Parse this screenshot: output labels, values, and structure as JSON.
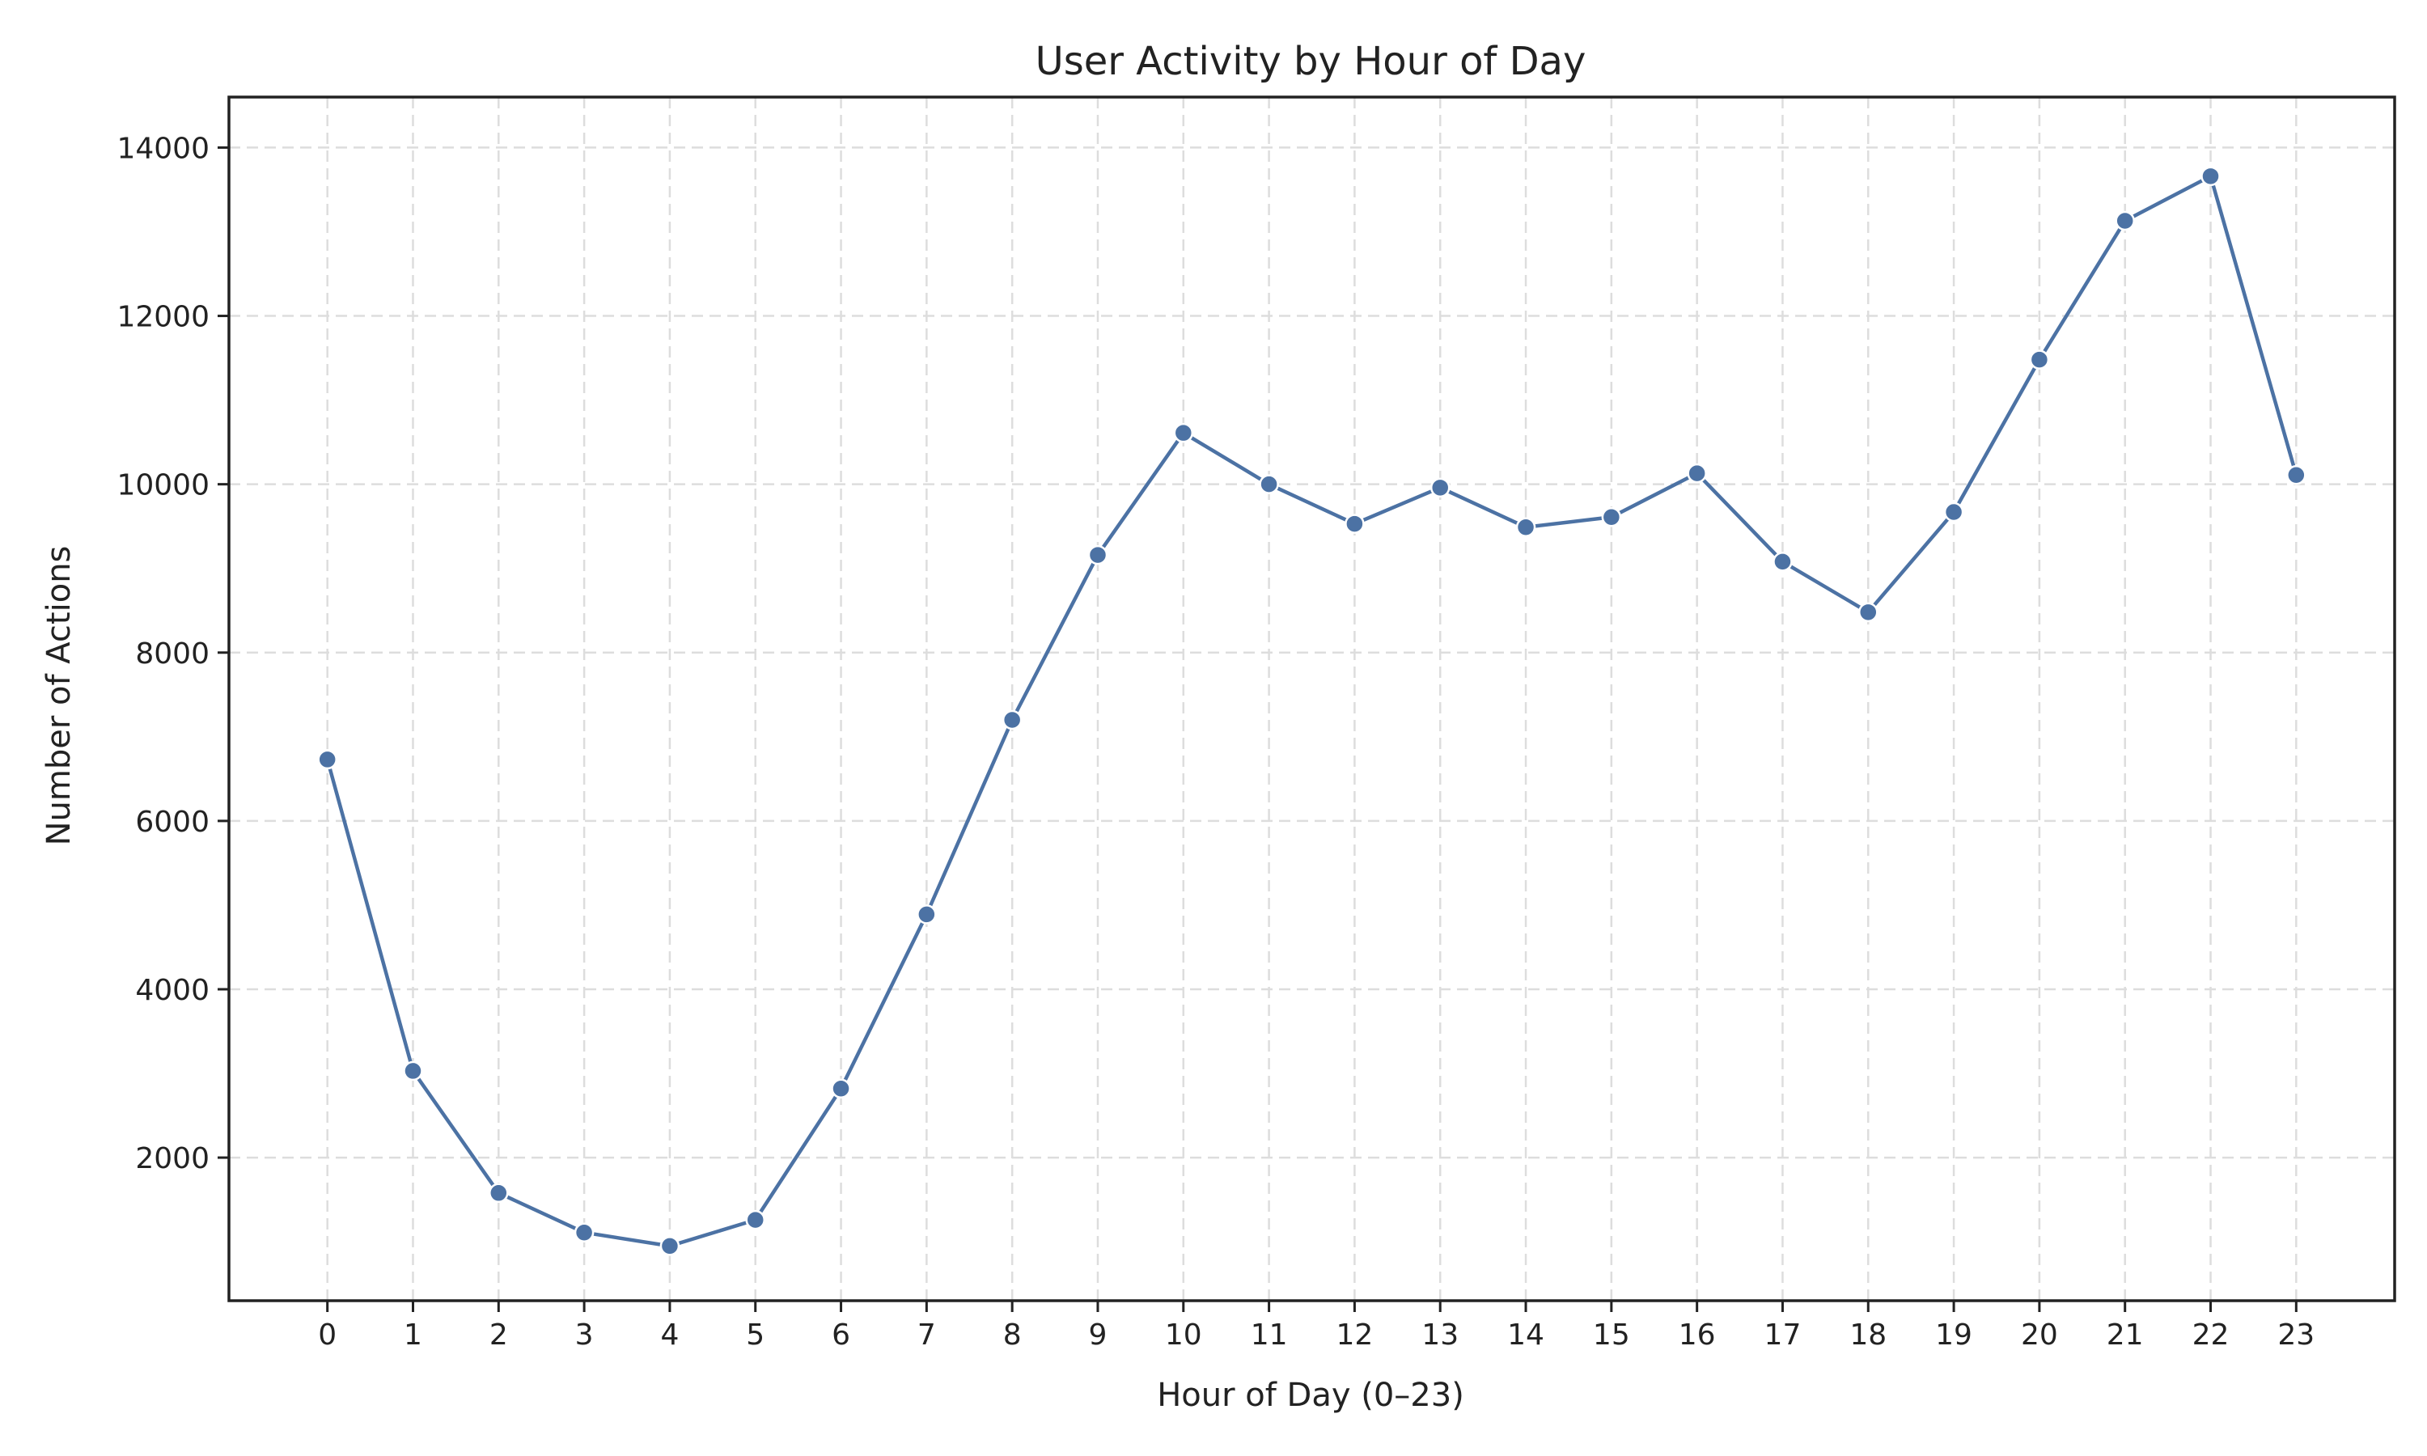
{
  "chart_data": {
    "type": "line",
    "title": "User Activity by Hour of Day",
    "xlabel": "Hour of Day (0–23)",
    "ylabel": "Number of Actions",
    "x": [
      0,
      1,
      2,
      3,
      4,
      5,
      6,
      7,
      8,
      9,
      10,
      11,
      12,
      13,
      14,
      15,
      16,
      17,
      18,
      19,
      20,
      21,
      22,
      23
    ],
    "series": [
      {
        "values": [
          6730,
          3030,
          1580,
          1110,
          950,
          1260,
          2820,
          4890,
          7200,
          9160,
          10610,
          10000,
          9530,
          9960,
          9490,
          9610,
          10130,
          9080,
          8480,
          9670,
          11480,
          13130,
          13660,
          10110
        ],
        "color": "#4c72a4"
      }
    ],
    "xlim": [
      -1.15,
      24.15
    ],
    "ylim": [
      300,
      14600
    ],
    "yticks": [
      2000,
      4000,
      6000,
      8000,
      10000,
      12000,
      14000
    ],
    "grid": true,
    "marker": "circle"
  }
}
